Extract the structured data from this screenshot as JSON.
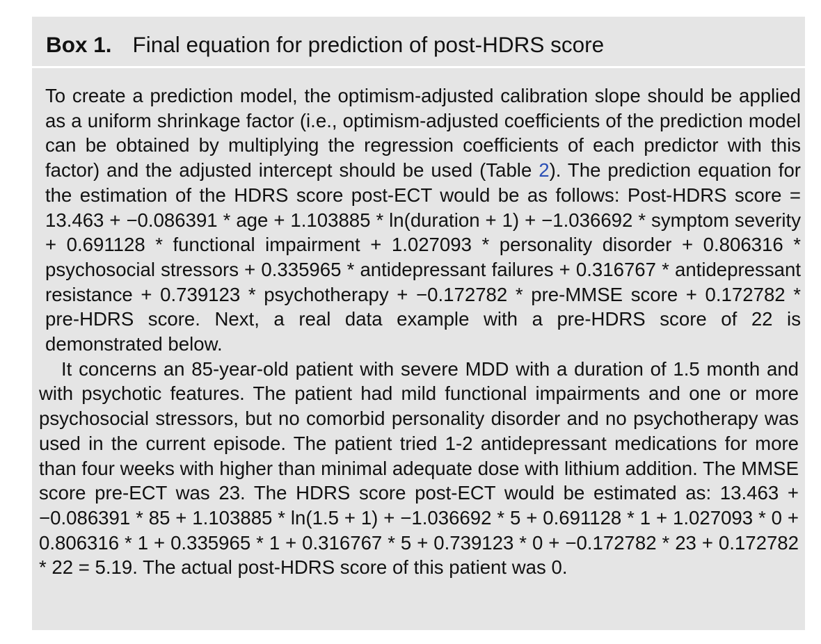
{
  "box": {
    "label": "Box 1.",
    "title": "Final equation for prediction of post-HDRS score"
  },
  "paragraphs": {
    "p1_before_ref": "To create a prediction model, the optimism-adjusted calibration slope should be applied as a uniform shrinkage factor (i.e., optimism-adjusted coefficients of the prediction model can be obtained by multiplying the regression coefficients of each predictor with this factor) and the adjusted intercept should be used (Table ",
    "p1_ref": "2",
    "p1_after_ref": "). The prediction equation for the estimation of the HDRS score post-ECT would be as follows: Post-HDRS score = 13.463 + −0.086391 * age + 1.103885 * ln(duration + 1) + −1.036692 * symptom severity + 0.691128 * functional impairment + 1.027093 * personality disorder + 0.806316 * psychosocial stressors + 0.335965 * antidepressant failures + 0.316767 * antidepressant resistance + 0.739123 * psychotherapy + −0.172782 * pre-MMSE score + 0.172782 * pre-HDRS score. Next, a real data example with a pre-HDRS score of 22 is demonstrated below.",
    "p2": "It concerns an 85-year-old patient with severe MDD with a duration of 1.5 month and with psychotic features. The patient had mild functional impairments and one or more psychosocial stressors, but no comorbid personality disorder and no psychotherapy was used in the current episode. The patient tried 1-2 antidepres­sant medications for more than four weeks with higher than minimal adequate dose with lithium addition. The MMSE score pre-ECT was 23. The HDRS score post-ECT would be estimated as: 13.463 + −0.086391 * 85 + 1.103885 * ln(1.5 + 1) + −1.036692 * 5 + 0.691128 * 1 + 1.027093 * 0 + 0.806316 * 1 + 0.335965 * 1 + 0.316767 * 5 + 0.739123 * 0 + −0.172782 * 23 + 0.172782 * 22 = 5.19. The actual post-HDRS score of this patient was 0."
  },
  "colors": {
    "box_background": "#e5e5e5",
    "link": "#2a4fb5"
  }
}
